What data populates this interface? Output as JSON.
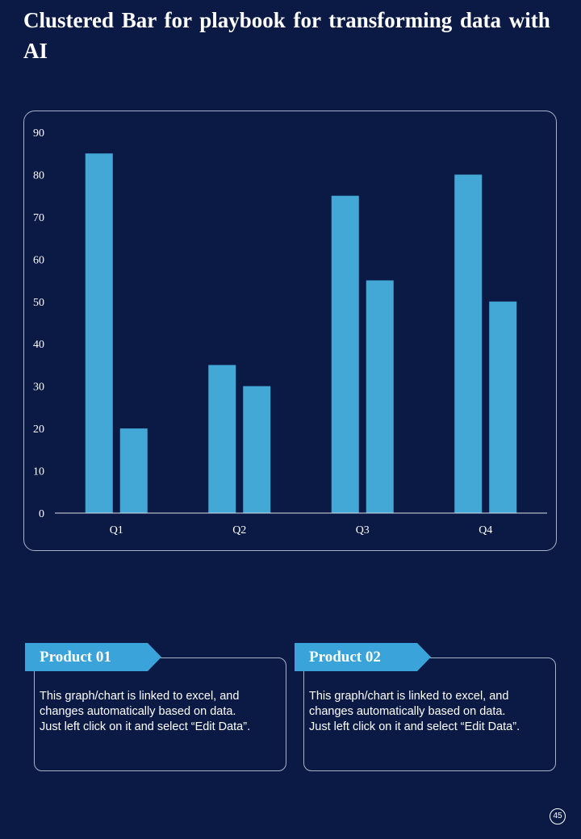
{
  "page": {
    "title": "Clustered Bar for playbook  for transforming data with AI",
    "page_number": "45"
  },
  "colors": {
    "background": "#0b1a44",
    "bar": "#44a8d6",
    "accent": "#3aa3d9",
    "border": "#a9b2c8"
  },
  "chart_data": {
    "type": "bar",
    "title": "",
    "xlabel": "",
    "ylabel": "",
    "categories": [
      "Q1",
      "Q2",
      "Q3",
      "Q4"
    ],
    "series": [
      {
        "name": "Product 01",
        "values": [
          85,
          35,
          75,
          80
        ]
      },
      {
        "name": "Product 02",
        "values": [
          20,
          30,
          55,
          50
        ]
      }
    ],
    "ylim": [
      0,
      90
    ],
    "yticks": [
      0,
      10,
      20,
      30,
      40,
      50,
      60,
      70,
      80,
      90
    ],
    "grid": false,
    "legend": "none"
  },
  "cards": [
    {
      "heading": "Product 01",
      "body": "This graph/chart  is linked to excel, and changes automatically based on data. Just left click on it and select “Edit Data”."
    },
    {
      "heading": "Product 02",
      "body": "This graph/chart  is linked to excel, and changes automatically based on data. Just left click on it and select “Edit Data”."
    }
  ]
}
